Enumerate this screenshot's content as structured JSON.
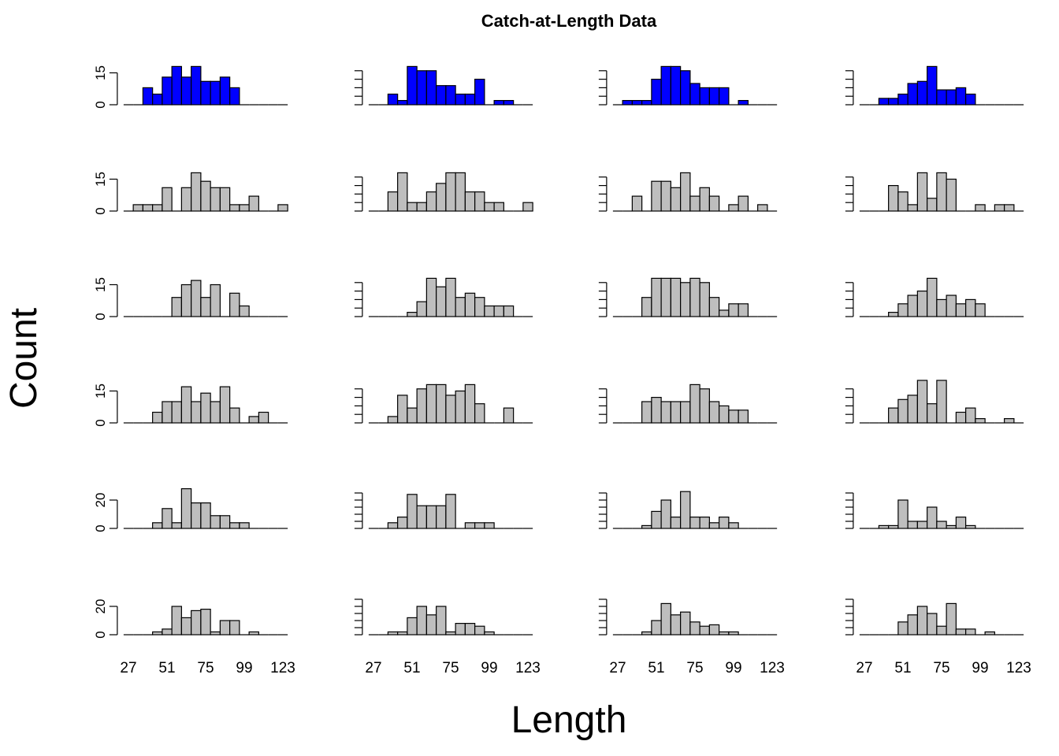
{
  "chart_data": {
    "type": "bar",
    "title": "Catch-at-Length Data",
    "xlabel": "Length",
    "ylabel": "Count",
    "layout": {
      "rows": 6,
      "cols": 4
    },
    "bin_mids": [
      27,
      33,
      39,
      45,
      51,
      57,
      63,
      69,
      75,
      81,
      87,
      93,
      99,
      105,
      111,
      117,
      123
    ],
    "x_tick_labels": [
      "27",
      "51",
      "75",
      "99",
      "123"
    ],
    "colors": {
      "highlight": "#0000FF",
      "default": "#BEBEBE"
    },
    "panels": [
      {
        "row": 1,
        "col": 1,
        "fill": "highlight",
        "ylim": [
          0,
          20
        ],
        "y_ticks": [
          0,
          15
        ],
        "y_tick_labels": [
          "0",
          "15"
        ],
        "values": [
          0,
          0,
          8,
          5,
          13,
          18,
          13,
          18,
          11,
          11,
          13,
          8,
          0,
          0,
          0,
          0,
          0
        ]
      },
      {
        "row": 1,
        "col": 2,
        "fill": "highlight",
        "ylim": [
          0,
          20
        ],
        "y_ticks": [
          0,
          4,
          8,
          12,
          16
        ],
        "y_tick_labels": [],
        "values": [
          0,
          0,
          5,
          2,
          18,
          16,
          16,
          9,
          9,
          5,
          5,
          12,
          0,
          2,
          2,
          0,
          0
        ]
      },
      {
        "row": 1,
        "col": 3,
        "fill": "highlight",
        "ylim": [
          0,
          20
        ],
        "y_ticks": [
          0,
          4,
          8,
          12,
          16
        ],
        "y_tick_labels": [],
        "values": [
          0,
          2,
          2,
          2,
          12,
          18,
          18,
          16,
          10,
          8,
          8,
          8,
          0,
          2,
          0,
          0,
          0
        ]
      },
      {
        "row": 1,
        "col": 4,
        "fill": "highlight",
        "ylim": [
          0,
          20
        ],
        "y_ticks": [
          0,
          4,
          8,
          12,
          16
        ],
        "y_tick_labels": [],
        "values": [
          0,
          0,
          3,
          3,
          5,
          10,
          11,
          18,
          7,
          7,
          8,
          5,
          0,
          0,
          0,
          0,
          0
        ]
      },
      {
        "row": 2,
        "col": 1,
        "fill": "default",
        "ylim": [
          0,
          20
        ],
        "y_ticks": [
          0,
          15
        ],
        "y_tick_labels": [
          "0",
          "15"
        ],
        "values": [
          0,
          3,
          3,
          3,
          11,
          0,
          11,
          18,
          14,
          11,
          11,
          3,
          3,
          7,
          0,
          0,
          3
        ]
      },
      {
        "row": 2,
        "col": 2,
        "fill": "default",
        "ylim": [
          0,
          20
        ],
        "y_ticks": [
          0,
          4,
          8,
          12,
          16
        ],
        "y_tick_labels": [],
        "values": [
          0,
          0,
          9,
          18,
          4,
          4,
          9,
          13,
          18,
          18,
          9,
          9,
          4,
          4,
          0,
          0,
          4
        ]
      },
      {
        "row": 2,
        "col": 3,
        "fill": "default",
        "ylim": [
          0,
          20
        ],
        "y_ticks": [
          0,
          4,
          8,
          12,
          16
        ],
        "y_tick_labels": [],
        "values": [
          0,
          0,
          7,
          0,
          14,
          14,
          11,
          18,
          7,
          11,
          7,
          0,
          3,
          7,
          0,
          3,
          0
        ]
      },
      {
        "row": 2,
        "col": 4,
        "fill": "default",
        "ylim": [
          0,
          20
        ],
        "y_ticks": [
          0,
          4,
          8,
          12,
          16
        ],
        "y_tick_labels": [],
        "values": [
          0,
          0,
          0,
          12,
          9,
          3,
          18,
          6,
          18,
          15,
          0,
          0,
          3,
          0,
          3,
          3,
          0
        ]
      },
      {
        "row": 3,
        "col": 1,
        "fill": "default",
        "ylim": [
          0,
          20
        ],
        "y_ticks": [
          0,
          15
        ],
        "y_tick_labels": [
          "0",
          "15"
        ],
        "values": [
          0,
          0,
          0,
          0,
          0,
          9,
          15,
          17,
          9,
          15,
          0,
          11,
          5,
          0,
          0,
          0,
          0
        ]
      },
      {
        "row": 3,
        "col": 2,
        "fill": "default",
        "ylim": [
          0,
          20
        ],
        "y_ticks": [
          0,
          4,
          8,
          12,
          16
        ],
        "y_tick_labels": [],
        "values": [
          0,
          0,
          0,
          0,
          2,
          7,
          18,
          14,
          18,
          9,
          11,
          9,
          5,
          5,
          5,
          0,
          0
        ]
      },
      {
        "row": 3,
        "col": 3,
        "fill": "default",
        "ylim": [
          0,
          20
        ],
        "y_ticks": [
          0,
          4,
          8,
          12,
          16
        ],
        "y_tick_labels": [],
        "values": [
          0,
          0,
          0,
          9,
          18,
          18,
          18,
          16,
          18,
          16,
          9,
          3,
          6,
          6,
          0,
          0,
          0
        ]
      },
      {
        "row": 3,
        "col": 4,
        "fill": "default",
        "ylim": [
          0,
          20
        ],
        "y_ticks": [
          0,
          4,
          8,
          12,
          16
        ],
        "y_tick_labels": [],
        "values": [
          0,
          0,
          0,
          2,
          6,
          10,
          12,
          18,
          8,
          10,
          6,
          8,
          6,
          0,
          0,
          0,
          0
        ]
      },
      {
        "row": 4,
        "col": 1,
        "fill": "default",
        "ylim": [
          0,
          20
        ],
        "y_ticks": [
          0,
          15
        ],
        "y_tick_labels": [
          "0",
          "15"
        ],
        "values": [
          0,
          0,
          0,
          5,
          10,
          10,
          17,
          10,
          14,
          10,
          17,
          7,
          0,
          3,
          5,
          0,
          0
        ]
      },
      {
        "row": 4,
        "col": 2,
        "fill": "default",
        "ylim": [
          0,
          20
        ],
        "y_ticks": [
          0,
          4,
          8,
          12,
          16
        ],
        "y_tick_labels": [],
        "values": [
          0,
          0,
          3,
          13,
          7,
          16,
          18,
          18,
          13,
          15,
          18,
          9,
          0,
          0,
          7,
          0,
          0
        ]
      },
      {
        "row": 4,
        "col": 3,
        "fill": "default",
        "ylim": [
          0,
          20
        ],
        "y_ticks": [
          0,
          4,
          8,
          12,
          16
        ],
        "y_tick_labels": [],
        "values": [
          0,
          0,
          0,
          10,
          12,
          10,
          10,
          10,
          18,
          16,
          10,
          8,
          6,
          6,
          0,
          0,
          0
        ]
      },
      {
        "row": 4,
        "col": 4,
        "fill": "default",
        "ylim": [
          0,
          20
        ],
        "y_ticks": [
          0,
          4,
          8,
          12,
          16
        ],
        "y_tick_labels": [],
        "values": [
          0,
          0,
          0,
          7,
          11,
          13,
          20,
          9,
          20,
          0,
          5,
          7,
          2,
          0,
          0,
          2,
          0
        ]
      },
      {
        "row": 5,
        "col": 1,
        "fill": "default",
        "ylim": [
          0,
          30
        ],
        "y_ticks": [
          0,
          20
        ],
        "y_tick_labels": [
          "0",
          "20"
        ],
        "values": [
          0,
          0,
          0,
          4,
          14,
          4,
          28,
          18,
          18,
          9,
          9,
          4,
          4,
          0,
          0,
          0,
          0
        ]
      },
      {
        "row": 5,
        "col": 2,
        "fill": "default",
        "ylim": [
          0,
          30
        ],
        "y_ticks": [
          0,
          5,
          10,
          15,
          20,
          25
        ],
        "y_tick_labels": [],
        "values": [
          0,
          0,
          4,
          8,
          24,
          16,
          16,
          16,
          24,
          0,
          4,
          4,
          4,
          0,
          0,
          0,
          0
        ]
      },
      {
        "row": 5,
        "col": 3,
        "fill": "default",
        "ylim": [
          0,
          30
        ],
        "y_ticks": [
          0,
          5,
          10,
          15,
          20,
          25
        ],
        "y_tick_labels": [],
        "values": [
          0,
          0,
          0,
          2,
          12,
          20,
          8,
          26,
          8,
          8,
          4,
          8,
          4,
          0,
          0,
          0,
          0
        ]
      },
      {
        "row": 5,
        "col": 4,
        "fill": "default",
        "ylim": [
          0,
          30
        ],
        "y_ticks": [
          0,
          5,
          10,
          15,
          20,
          25
        ],
        "y_tick_labels": [],
        "values": [
          0,
          0,
          2,
          2,
          20,
          5,
          5,
          15,
          5,
          2,
          8,
          2,
          0,
          0,
          0,
          0,
          0
        ]
      },
      {
        "row": 6,
        "col": 1,
        "fill": "default",
        "ylim": [
          0,
          30
        ],
        "y_ticks": [
          0,
          20
        ],
        "y_tick_labels": [
          "0",
          "20"
        ],
        "values": [
          0,
          0,
          0,
          2,
          4,
          20,
          12,
          17,
          18,
          2,
          10,
          10,
          0,
          2,
          0,
          0,
          0
        ]
      },
      {
        "row": 6,
        "col": 2,
        "fill": "default",
        "ylim": [
          0,
          30
        ],
        "y_ticks": [
          0,
          5,
          10,
          15,
          20,
          25
        ],
        "y_tick_labels": [],
        "values": [
          0,
          0,
          2,
          2,
          12,
          20,
          14,
          20,
          2,
          8,
          8,
          6,
          2,
          0,
          0,
          0,
          0
        ]
      },
      {
        "row": 6,
        "col": 3,
        "fill": "default",
        "ylim": [
          0,
          30
        ],
        "y_ticks": [
          0,
          5,
          10,
          15,
          20,
          25
        ],
        "y_tick_labels": [],
        "values": [
          0,
          0,
          0,
          2,
          10,
          22,
          14,
          16,
          9,
          6,
          7,
          2,
          2,
          0,
          0,
          0,
          0
        ]
      },
      {
        "row": 6,
        "col": 4,
        "fill": "default",
        "ylim": [
          0,
          30
        ],
        "y_ticks": [
          0,
          5,
          10,
          15,
          20,
          25
        ],
        "y_tick_labels": [],
        "values": [
          0,
          0,
          0,
          0,
          9,
          14,
          20,
          15,
          6,
          22,
          4,
          4,
          0,
          2,
          0,
          0,
          0
        ]
      }
    ]
  }
}
